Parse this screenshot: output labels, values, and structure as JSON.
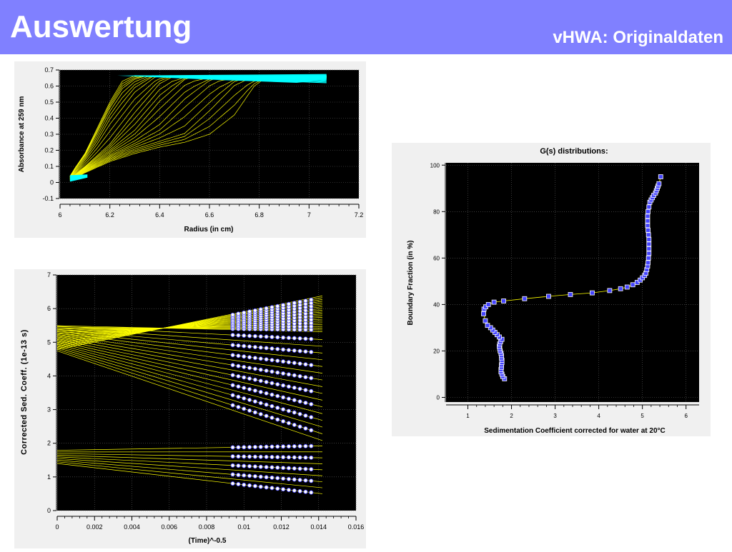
{
  "header": {
    "title": "Auswertung",
    "subtitle": "vHWA: Originaldaten",
    "background": "#8080ff"
  },
  "chart_data": [
    {
      "type": "line",
      "title": "",
      "xlabel": "Radius (in cm)",
      "ylabel": "Absorbance at 259 nm",
      "xlim": [
        6,
        7.2
      ],
      "ylim": [
        -0.1,
        0.7
      ],
      "x_ticks": [
        "6",
        "6.2",
        "6.4",
        "6.6",
        "6.8",
        "7",
        "7.2"
      ],
      "y_ticks": [
        "-0.1",
        "0",
        "0.1",
        "0.2",
        "0.3",
        "0.4",
        "0.5",
        "0.6",
        "0.7"
      ],
      "grid": true,
      "colors": {
        "traces": "#ffff00",
        "edges": "#00ffff",
        "plot_bg": "#000000"
      },
      "series": [
        {
          "values": [
            [
              6.04,
              0.04
            ],
            [
              6.06,
              0.09
            ],
            [
              6.1,
              0.18
            ],
            [
              6.15,
              0.34
            ],
            [
              6.2,
              0.5
            ],
            [
              6.25,
              0.63
            ],
            [
              6.3,
              0.665
            ],
            [
              7.07,
              0.665
            ]
          ]
        },
        {
          "values": [
            [
              6.04,
              0.035
            ],
            [
              6.06,
              0.085
            ],
            [
              6.1,
              0.17
            ],
            [
              6.15,
              0.31
            ],
            [
              6.2,
              0.46
            ],
            [
              6.25,
              0.58
            ],
            [
              6.3,
              0.64
            ],
            [
              6.35,
              0.665
            ],
            [
              7.07,
              0.665
            ]
          ]
        },
        {
          "values": [
            [
              6.04,
              0.03
            ],
            [
              6.08,
              0.1
            ],
            [
              6.15,
              0.25
            ],
            [
              6.2,
              0.38
            ],
            [
              6.3,
              0.58
            ],
            [
              6.38,
              0.665
            ],
            [
              7.07,
              0.66
            ]
          ]
        },
        {
          "values": [
            [
              6.04,
              0.025
            ],
            [
              6.1,
              0.1
            ],
            [
              6.2,
              0.24
            ],
            [
              6.3,
              0.44
            ],
            [
              6.4,
              0.62
            ],
            [
              6.45,
              0.66
            ],
            [
              7.07,
              0.66
            ]
          ]
        },
        {
          "values": [
            [
              6.04,
              0.02
            ],
            [
              6.1,
              0.09
            ],
            [
              6.2,
              0.2
            ],
            [
              6.3,
              0.32
            ],
            [
              6.4,
              0.5
            ],
            [
              6.5,
              0.64
            ],
            [
              6.54,
              0.66
            ],
            [
              7.07,
              0.655
            ]
          ]
        },
        {
          "values": [
            [
              6.04,
              0.02
            ],
            [
              6.1,
              0.08
            ],
            [
              6.2,
              0.17
            ],
            [
              6.3,
              0.25
            ],
            [
              6.4,
              0.34
            ],
            [
              6.5,
              0.5
            ],
            [
              6.6,
              0.63
            ],
            [
              6.64,
              0.655
            ],
            [
              7.07,
              0.655
            ]
          ]
        },
        {
          "values": [
            [
              6.04,
              0.015
            ],
            [
              6.1,
              0.07
            ],
            [
              6.2,
              0.15
            ],
            [
              6.3,
              0.21
            ],
            [
              6.4,
              0.26
            ],
            [
              6.5,
              0.31
            ],
            [
              6.6,
              0.46
            ],
            [
              6.7,
              0.62
            ],
            [
              6.75,
              0.65
            ],
            [
              7.07,
              0.65
            ]
          ]
        },
        {
          "values": [
            [
              6.04,
              0.01
            ],
            [
              6.1,
              0.06
            ],
            [
              6.2,
              0.13
            ],
            [
              6.3,
              0.18
            ],
            [
              6.4,
              0.22
            ],
            [
              6.5,
              0.25
            ],
            [
              6.6,
              0.3
            ],
            [
              6.7,
              0.42
            ],
            [
              6.78,
              0.6
            ],
            [
              6.82,
              0.645
            ],
            [
              7.07,
              0.65
            ]
          ]
        },
        {
          "values": [
            [
              6.04,
              0.0
            ],
            [
              6.08,
              0.02
            ],
            [
              6.1,
              0.04
            ],
            [
              7.07,
              0.65
            ]
          ]
        }
      ]
    },
    {
      "type": "scatter",
      "title": "G(s) distributions:",
      "xlabel": "Sedimentation Coefficient corrected for water at 20°C",
      "ylabel": "Boundary Fraction (in %)",
      "xlim": [
        0.5,
        6.3
      ],
      "ylim": [
        -2,
        101
      ],
      "x_ticks": [
        "1",
        "2",
        "3",
        "4",
        "5",
        "6"
      ],
      "y_ticks": [
        "0",
        "20",
        "40",
        "60",
        "80",
        "100"
      ],
      "grid": true,
      "colors": {
        "markers": "#4444ff",
        "line": "#ffff00",
        "plot_bg": "#000000"
      },
      "x": [
        1.84,
        1.8,
        1.78,
        1.76,
        1.76,
        1.77,
        1.77,
        1.78,
        1.78,
        1.77,
        1.77,
        1.76,
        1.74,
        1.73,
        1.72,
        1.73,
        1.75,
        1.78,
        1.72,
        1.67,
        1.62,
        1.57,
        1.52,
        1.45,
        1.4,
        1.36,
        1.37,
        1.41,
        1.47,
        1.6,
        1.82,
        2.3,
        2.85,
        3.35,
        3.85,
        4.25,
        4.5,
        4.65,
        4.78,
        4.88,
        4.95,
        5.0,
        5.05,
        5.08,
        5.1,
        5.12,
        5.13,
        5.14,
        5.15,
        5.15,
        5.15,
        5.15,
        5.14,
        5.13,
        5.12,
        5.12,
        5.12,
        5.13,
        5.15,
        5.17,
        5.2,
        5.23,
        5.26,
        5.3,
        5.32,
        5.34,
        5.36,
        5.38,
        5.42
      ],
      "y": [
        8,
        9,
        10,
        11,
        12,
        13,
        14,
        15,
        16,
        17,
        18,
        19,
        20,
        21,
        22,
        23,
        24,
        25,
        26,
        27,
        28,
        29,
        30,
        31,
        33,
        36,
        38,
        39,
        40,
        41,
        41.5,
        42.5,
        43.5,
        44.3,
        45,
        46,
        46.8,
        47.5,
        48.5,
        49.5,
        50.5,
        51.5,
        52.5,
        53.5,
        55,
        56.5,
        58,
        60,
        62,
        64,
        66,
        68,
        70,
        72,
        74,
        76,
        78,
        80,
        82,
        84,
        85,
        86,
        87,
        88,
        89,
        90,
        91,
        92,
        95
      ]
    },
    {
      "type": "scatter",
      "title": "",
      "xlabel": "(Time)^-0.5",
      "ylabel": "Corrected Sed. Coeff. (1e-13 s)",
      "xlim": [
        0,
        0.016
      ],
      "ylim": [
        0,
        7
      ],
      "x_ticks": [
        "0",
        "0.002",
        "0.004",
        "0.006",
        "0.008",
        "0.01",
        "0.012",
        "0.014",
        "0.016"
      ],
      "y_ticks": [
        "0",
        "1",
        "2",
        "3",
        "4",
        "5",
        "6",
        "7"
      ],
      "grid": true,
      "colors": {
        "lines": "#ffff00",
        "points": "#ffffff",
        "point_edge": "#4444ff",
        "plot_bg": "#000000"
      },
      "x": [
        0.0094,
        0.0097,
        0.01,
        0.0103,
        0.0106,
        0.0109,
        0.0112,
        0.0115,
        0.0118,
        0.0121,
        0.0124,
        0.0127,
        0.013,
        0.0133,
        0.0136
      ]
    }
  ]
}
